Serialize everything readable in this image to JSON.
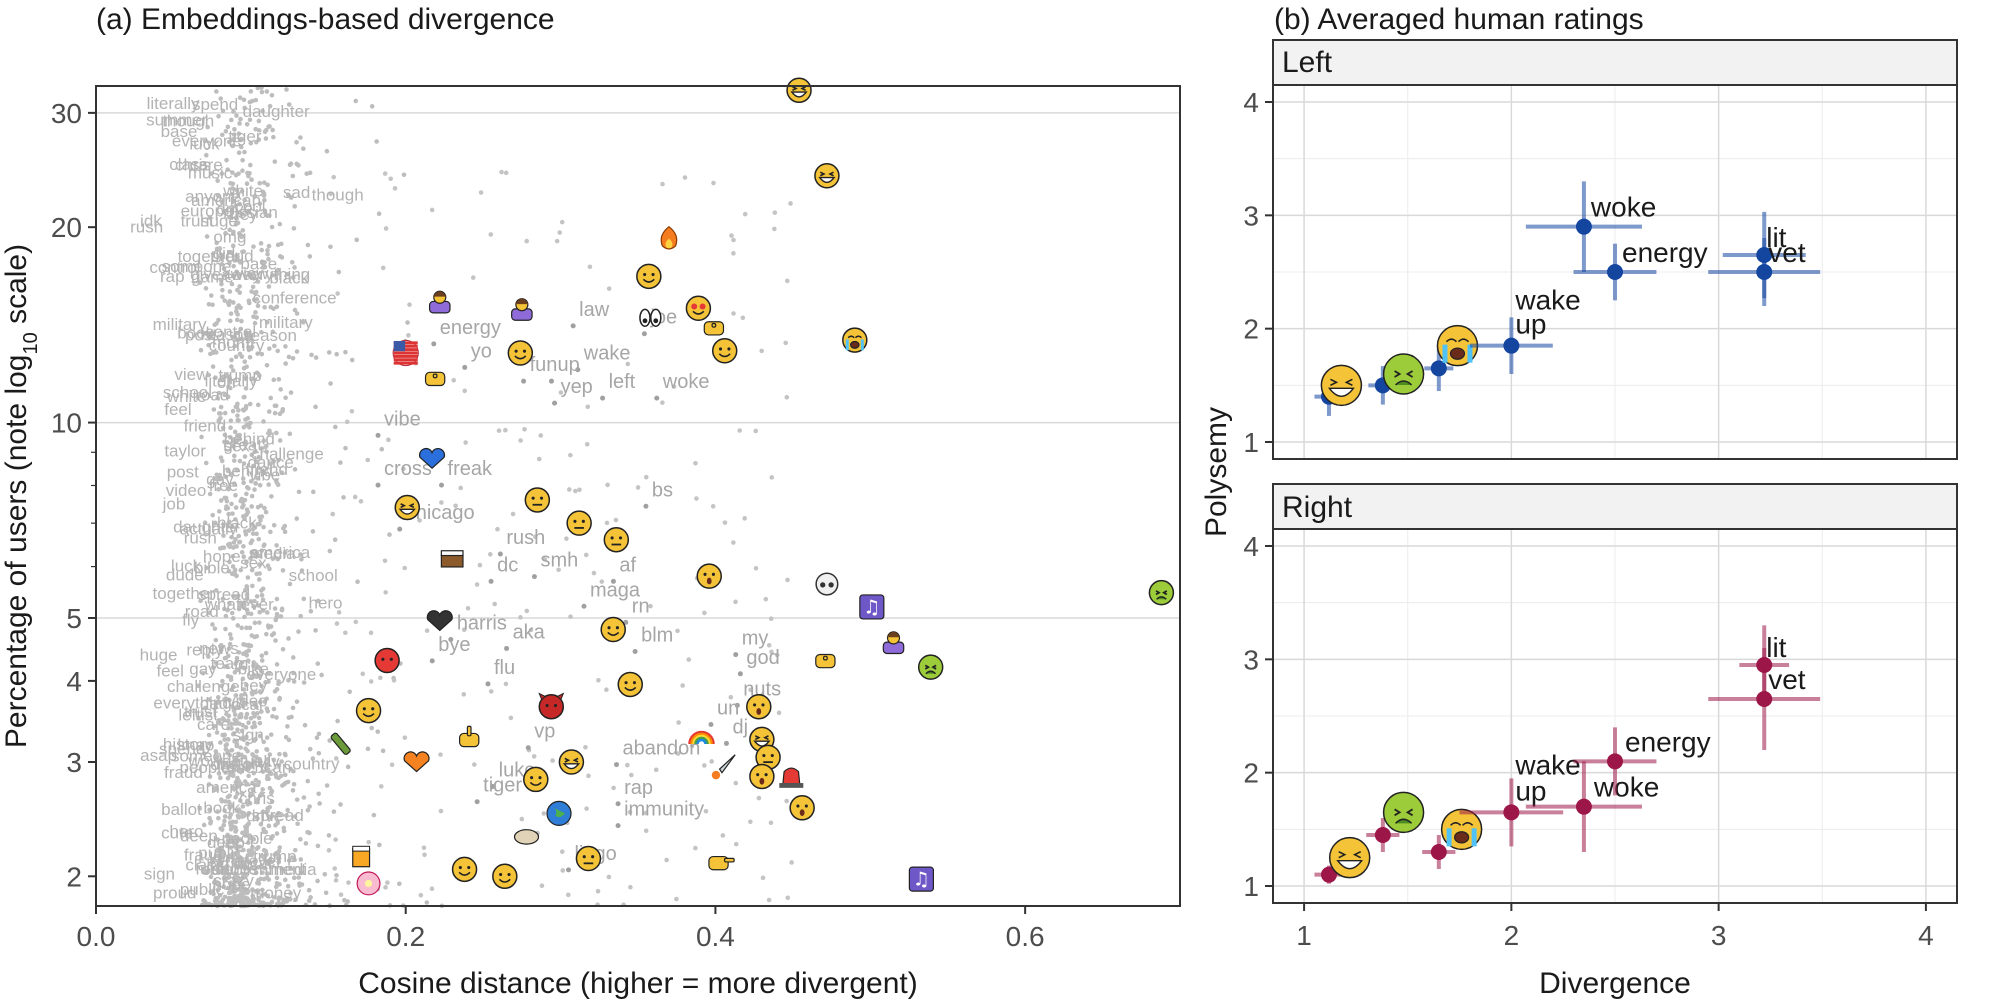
{
  "colors": {
    "left": "#1446a0",
    "right": "#9c1748",
    "grid": "#d9d9d9",
    "bgWord": "#b3b3b3",
    "emojiFace": "#f4c338"
  },
  "chart_data": [
    {
      "type": "scatter",
      "title": "(a) Embeddings-based divergence",
      "xlabel": "Cosine distance (higher = more divergent)",
      "ylabel": "Percentage of users (note log10 scale)",
      "ylabel_parts": {
        "main": "Percentage of users  (note log",
        "sub": "10",
        "end": " scale)"
      },
      "xlim": [
        0,
        0.7
      ],
      "ylim": [
        1.8,
        33
      ],
      "y_scale": "log",
      "xticks": [
        "0.0",
        "0.2",
        "0.4",
        "0.6"
      ],
      "xtick_values": [
        0,
        0.2,
        0.4,
        0.6
      ],
      "yticks": [
        "2",
        "3",
        "4",
        "5",
        "10",
        "20",
        "30"
      ],
      "ytick_values": [
        2,
        3,
        4,
        5,
        10,
        20,
        30
      ],
      "background_words": [
        "everyone",
        "people",
        "job",
        "oh",
        "literally",
        "someone",
        "hey",
        "actually",
        "post",
        "sign",
        "everything",
        "dance",
        "drive",
        "black",
        "though",
        "book",
        "white",
        "america",
        "spend",
        "feel",
        "american",
        "together",
        "hope",
        "behind",
        "huge",
        "country",
        "base",
        "view",
        "whatever",
        "control",
        "road",
        "daughter",
        "school",
        "deep",
        "reason",
        "chris",
        "luck",
        "class",
        "fraud",
        "hero",
        "friend",
        "spread",
        "challenge",
        "military",
        "history",
        "care",
        "rush",
        "local",
        "sex",
        "media",
        "public",
        "proud",
        "trust",
        "video",
        "trump",
        "gay",
        "fly",
        "asap",
        "russian",
        "europe",
        "bike",
        "giveaway",
        "conference",
        "establishment",
        "dude",
        "bible",
        "ballot",
        "taylor",
        "tiger",
        "girl",
        "anyone",
        "free",
        "leftist",
        "summer",
        "great",
        "money",
        "reply",
        "cool",
        "crazy",
        "sad",
        "idk",
        "lmao",
        "omg",
        "vibe",
        "mom",
        "dad",
        "fun",
        "cute",
        "wow",
        "news",
        "game",
        "team",
        "music",
        "rap"
      ],
      "word_points": [
        {
          "label": "energy",
          "x": 0.222,
          "y": 13.7
        },
        {
          "label": "yo",
          "x": 0.242,
          "y": 12.6
        },
        {
          "label": "law",
          "x": 0.312,
          "y": 14.6
        },
        {
          "label": "wake",
          "x": 0.315,
          "y": 12.5
        },
        {
          "label": "fun",
          "x": 0.28,
          "y": 12.0
        },
        {
          "label": "up",
          "x": 0.298,
          "y": 12.0
        },
        {
          "label": "yep",
          "x": 0.3,
          "y": 11.1
        },
        {
          "label": "left",
          "x": 0.331,
          "y": 11.3
        },
        {
          "label": "woke",
          "x": 0.366,
          "y": 11.3
        },
        {
          "label": "joe",
          "x": 0.358,
          "y": 14.2
        },
        {
          "label": "vibe",
          "x": 0.186,
          "y": 9.9
        },
        {
          "label": "cross",
          "x": 0.186,
          "y": 8.3
        },
        {
          "label": "freak",
          "x": 0.227,
          "y": 8.3
        },
        {
          "label": "chicago",
          "x": 0.2,
          "y": 7.1
        },
        {
          "label": "bs",
          "x": 0.359,
          "y": 7.7
        },
        {
          "label": "rush",
          "x": 0.265,
          "y": 6.5
        },
        {
          "label": "smh",
          "x": 0.287,
          "y": 6.0
        },
        {
          "label": "dc",
          "x": 0.259,
          "y": 5.9
        },
        {
          "label": "af",
          "x": 0.338,
          "y": 5.9
        },
        {
          "label": "maga",
          "x": 0.319,
          "y": 5.4
        },
        {
          "label": "rn",
          "x": 0.346,
          "y": 5.1
        },
        {
          "label": "blm",
          "x": 0.352,
          "y": 4.6
        },
        {
          "label": "aka",
          "x": 0.269,
          "y": 4.65
        },
        {
          "label": "harris",
          "x": 0.233,
          "y": 4.8
        },
        {
          "label": "bye",
          "x": 0.221,
          "y": 4.45
        },
        {
          "label": "flu",
          "x": 0.257,
          "y": 4.1
        },
        {
          "label": "my",
          "x": 0.417,
          "y": 4.55
        },
        {
          "label": "god",
          "x": 0.42,
          "y": 4.25
        },
        {
          "label": "nuts",
          "x": 0.418,
          "y": 3.8
        },
        {
          "label": "un",
          "x": 0.401,
          "y": 3.55
        },
        {
          "label": "dj",
          "x": 0.411,
          "y": 3.32
        },
        {
          "label": "abandon",
          "x": 0.34,
          "y": 3.08
        },
        {
          "label": "vp",
          "x": 0.283,
          "y": 3.27
        },
        {
          "label": "luke",
          "x": 0.26,
          "y": 2.85
        },
        {
          "label": "tiger",
          "x": 0.25,
          "y": 2.7
        },
        {
          "label": "rap",
          "x": 0.341,
          "y": 2.68
        },
        {
          "label": "immunity",
          "x": 0.341,
          "y": 2.48
        },
        {
          "label": "lingo",
          "x": 0.309,
          "y": 2.12
        }
      ],
      "emoji_points": [
        {
          "name": "grinning-squinting-face",
          "x": 0.454,
          "y": 32.5
        },
        {
          "name": "rolling-on-floor-laughing-face",
          "x": 0.472,
          "y": 24.0
        },
        {
          "name": "fire",
          "x": 0.37,
          "y": 19.2
        },
        {
          "name": "smirking-face",
          "x": 0.357,
          "y": 16.8
        },
        {
          "name": "heart-eyes-face",
          "x": 0.389,
          "y": 15.0
        },
        {
          "name": "clapping-hands",
          "x": 0.399,
          "y": 14.0
        },
        {
          "name": "eyes",
          "x": 0.358,
          "y": 14.5
        },
        {
          "name": "face-with-rolling-eyes",
          "x": 0.406,
          "y": 12.9
        },
        {
          "name": "loudly-crying-face",
          "x": 0.49,
          "y": 13.4
        },
        {
          "name": "woman-shrugging",
          "x": 0.222,
          "y": 15.4
        },
        {
          "name": "woman-tipping-hand",
          "x": 0.275,
          "y": 15.0
        },
        {
          "name": "us-flag",
          "x": 0.2,
          "y": 12.8
        },
        {
          "name": "hugging-face",
          "x": 0.274,
          "y": 12.8
        },
        {
          "name": "raising-hands",
          "x": 0.219,
          "y": 11.7
        },
        {
          "name": "blue-heart",
          "x": 0.217,
          "y": 8.8
        },
        {
          "name": "grimacing-face",
          "x": 0.285,
          "y": 7.6
        },
        {
          "name": "beaming-face",
          "x": 0.201,
          "y": 7.4
        },
        {
          "name": "weary-face",
          "x": 0.312,
          "y": 7.0
        },
        {
          "name": "worried-face",
          "x": 0.336,
          "y": 6.6
        },
        {
          "name": "cake",
          "x": 0.23,
          "y": 6.2
        },
        {
          "name": "anxious-face",
          "x": 0.396,
          "y": 5.8
        },
        {
          "name": "skull",
          "x": 0.472,
          "y": 5.6
        },
        {
          "name": "nauseated-face",
          "x": 0.688,
          "y": 5.47
        },
        {
          "name": "musical-notes",
          "x": 0.501,
          "y": 5.2
        },
        {
          "name": "black-heart",
          "x": 0.222,
          "y": 4.95
        },
        {
          "name": "hugging-face-2",
          "x": 0.334,
          "y": 4.8
        },
        {
          "name": "woman-tipping-hand-2",
          "x": 0.515,
          "y": 4.6
        },
        {
          "name": "thumbs-down",
          "x": 0.471,
          "y": 4.3
        },
        {
          "name": "nauseated-face-2",
          "x": 0.539,
          "y": 4.2
        },
        {
          "name": "pouting-face",
          "x": 0.188,
          "y": 4.3
        },
        {
          "name": "winking-face",
          "x": 0.345,
          "y": 3.95
        },
        {
          "name": "face-screaming",
          "x": 0.428,
          "y": 3.65
        },
        {
          "name": "smiling-devil",
          "x": 0.294,
          "y": 3.65
        },
        {
          "name": "relieved-face",
          "x": 0.176,
          "y": 3.6
        },
        {
          "name": "rainbow",
          "x": 0.391,
          "y": 3.28
        },
        {
          "name": "face-holding-tears",
          "x": 0.43,
          "y": 3.25
        },
        {
          "name": "expressionless-face",
          "x": 0.434,
          "y": 3.05
        },
        {
          "name": "middle-finger",
          "x": 0.241,
          "y": 3.25
        },
        {
          "name": "champagne",
          "x": 0.158,
          "y": 3.2
        },
        {
          "name": "rocket",
          "x": 0.405,
          "y": 2.95
        },
        {
          "name": "dizzy-face",
          "x": 0.43,
          "y": 2.85
        },
        {
          "name": "police-light",
          "x": 0.449,
          "y": 2.85
        },
        {
          "name": "orange-heart",
          "x": 0.207,
          "y": 3.0
        },
        {
          "name": "grinning-face",
          "x": 0.307,
          "y": 3.0
        },
        {
          "name": "face-with-raised-eyebrow",
          "x": 0.284,
          "y": 2.82
        },
        {
          "name": "globe",
          "x": 0.299,
          "y": 2.5
        },
        {
          "name": "flushed-face",
          "x": 0.456,
          "y": 2.55
        },
        {
          "name": "beer-mugs",
          "x": 0.172,
          "y": 2.15
        },
        {
          "name": "goat",
          "x": 0.278,
          "y": 2.3
        },
        {
          "name": "nerd-face",
          "x": 0.238,
          "y": 2.05
        },
        {
          "name": "money-mouth-face",
          "x": 0.264,
          "y": 2.0
        },
        {
          "name": "tired-face",
          "x": 0.318,
          "y": 2.13
        },
        {
          "name": "pointing-right",
          "x": 0.402,
          "y": 2.1
        },
        {
          "name": "musical-note",
          "x": 0.533,
          "y": 1.98
        },
        {
          "name": "cherry-blossom",
          "x": 0.176,
          "y": 1.95
        }
      ]
    },
    {
      "type": "scatter",
      "title": "(b) Averaged human ratings",
      "xlabel": "Divergence",
      "ylabel": "Polysemy",
      "xlim": [
        0.85,
        4.15
      ],
      "ylim": [
        0.85,
        4.15
      ],
      "xticks": [
        "1",
        "2",
        "3",
        "4"
      ],
      "xtick_values": [
        1,
        2,
        3,
        4
      ],
      "yticks": [
        "1",
        "2",
        "3",
        "4"
      ],
      "ytick_values": [
        1,
        2,
        3,
        4
      ],
      "facets": [
        {
          "name": "Left",
          "points": [
            {
              "label": "",
              "x": 1.12,
              "y": 1.4,
              "xerr": 0.07,
              "yerr": 0.17,
              "emoji": ""
            },
            {
              "label": "",
              "x": 1.38,
              "y": 1.5,
              "xerr": 0.07,
              "yerr": 0.17,
              "emoji": ""
            },
            {
              "label": "",
              "x": 1.65,
              "y": 1.65,
              "xerr": 0.07,
              "yerr": 0.2,
              "emoji": ""
            },
            {
              "label": "",
              "x": 1.18,
              "y": 1.5,
              "xerr": 0,
              "yerr": 0,
              "emoji": "grinning-squinting-face"
            },
            {
              "label": "",
              "x": 1.48,
              "y": 1.6,
              "xerr": 0,
              "yerr": 0,
              "emoji": "nauseated-face"
            },
            {
              "label": "",
              "x": 1.74,
              "y": 1.85,
              "xerr": 0,
              "yerr": 0,
              "emoji": "loudly-crying-face"
            },
            {
              "label": "up",
              "x": 2.0,
              "y": 1.85,
              "xerr": 0.2,
              "yerr": 0.25,
              "emoji": ""
            },
            {
              "label": "wake",
              "x": 2.0,
              "y": 1.85,
              "xerr": 0,
              "yerr": 0,
              "emoji": ""
            },
            {
              "label": "energy",
              "x": 2.5,
              "y": 2.5,
              "xerr": 0.2,
              "yerr": 0.25,
              "emoji": ""
            },
            {
              "label": "woke",
              "x": 2.35,
              "y": 2.9,
              "xerr": 0.28,
              "yerr": 0.4,
              "emoji": ""
            },
            {
              "label": "lit",
              "x": 3.22,
              "y": 2.65,
              "xerr": 0.2,
              "yerr": 0.38,
              "emoji": ""
            },
            {
              "label": "vet",
              "x": 3.22,
              "y": 2.5,
              "xerr": 0.27,
              "yerr": 0.3,
              "emoji": ""
            }
          ]
        },
        {
          "name": "Right",
          "points": [
            {
              "label": "",
              "x": 1.12,
              "y": 1.1,
              "xerr": 0.07,
              "yerr": 0.08,
              "emoji": ""
            },
            {
              "label": "",
              "x": 1.38,
              "y": 1.45,
              "xerr": 0.08,
              "yerr": 0.15,
              "emoji": ""
            },
            {
              "label": "",
              "x": 1.65,
              "y": 1.3,
              "xerr": 0.08,
              "yerr": 0.15,
              "emoji": ""
            },
            {
              "label": "",
              "x": 1.22,
              "y": 1.25,
              "xerr": 0,
              "yerr": 0,
              "emoji": "grinning-squinting-face"
            },
            {
              "label": "",
              "x": 1.48,
              "y": 1.65,
              "xerr": 0,
              "yerr": 0,
              "emoji": "nauseated-face"
            },
            {
              "label": "",
              "x": 1.76,
              "y": 1.5,
              "xerr": 0,
              "yerr": 0,
              "emoji": "loudly-crying-face"
            },
            {
              "label": "up",
              "x": 2.0,
              "y": 1.65,
              "xerr": 0.25,
              "yerr": 0.3,
              "emoji": ""
            },
            {
              "label": "wake",
              "x": 2.0,
              "y": 1.65,
              "xerr": 0,
              "yerr": 0,
              "emoji": ""
            },
            {
              "label": "woke",
              "x": 2.35,
              "y": 1.7,
              "xerr": 0.28,
              "yerr": 0.4,
              "emoji": ""
            },
            {
              "label": "energy",
              "x": 2.5,
              "y": 2.1,
              "xerr": 0.2,
              "yerr": 0.3,
              "emoji": ""
            },
            {
              "label": "lit",
              "x": 3.22,
              "y": 2.95,
              "xerr": 0.12,
              "yerr": 0.35,
              "emoji": ""
            },
            {
              "label": "vet",
              "x": 3.22,
              "y": 2.65,
              "xerr": 0.27,
              "yerr": 0.45,
              "emoji": ""
            }
          ]
        }
      ]
    }
  ]
}
